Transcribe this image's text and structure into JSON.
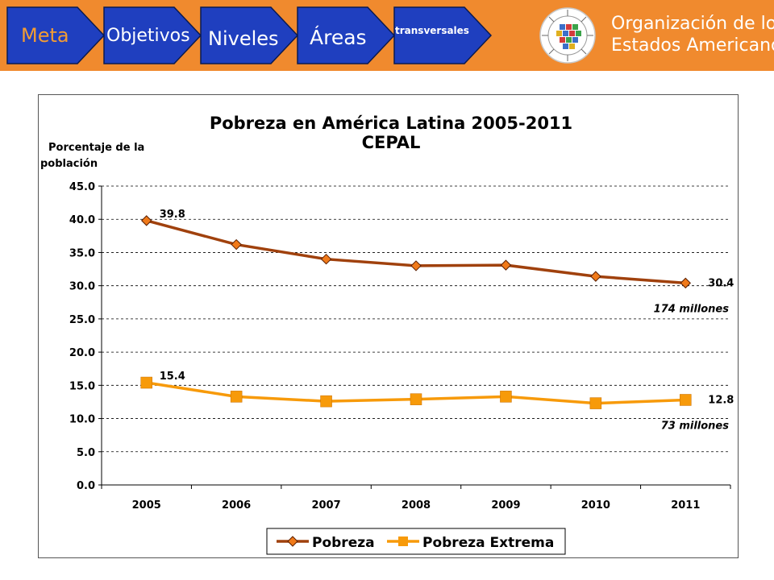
{
  "header": {
    "nav": [
      {
        "label": "Meta"
      },
      {
        "label": "Objetivos"
      },
      {
        "label": "Niveles"
      },
      {
        "label": "Áreas"
      },
      {
        "label": "transversales"
      }
    ],
    "logo": {
      "line1": "Organización de los",
      "line2": "Estados Americanos",
      "seal_text": "ORGANIZACION DE LOS ESTADOS AMERICANOS"
    }
  },
  "colors": {
    "header_bg": "#f08a2e",
    "nav_fill": "#1f3fbf",
    "nav_text_orange": "#f39c33",
    "nav_text_white": "#ffffff",
    "series_pobreza": "#a0410d",
    "series_extrema": "#f79a0a",
    "marker_pobreza": "#f07a1a"
  },
  "chart_data": {
    "type": "line",
    "title": "Pobreza en América Latina 2005-2011",
    "subtitle": "CEPAL",
    "ylabel_line1": "Porcentaje de la",
    "ylabel_line2": "población",
    "xlabel": "",
    "ylim": [
      0,
      45
    ],
    "ytick_step": 5,
    "y_ticks": [
      "45.0",
      "40.0",
      "35.0",
      "30.0",
      "25.0",
      "20.0",
      "15.0",
      "10.0",
      "5.0",
      "0.0"
    ],
    "categories": [
      "2005",
      "2006",
      "2007",
      "2008",
      "2009",
      "2010",
      "2011"
    ],
    "series": [
      {
        "name": "Pobreza",
        "values": [
          39.8,
          36.2,
          34.0,
          33.0,
          33.1,
          31.4,
          30.4
        ],
        "marker": "diamond"
      },
      {
        "name": "Pobreza Extrema",
        "values": [
          15.4,
          13.3,
          12.6,
          12.9,
          13.3,
          12.3,
          12.8
        ],
        "marker": "square"
      }
    ],
    "data_labels": [
      {
        "series": 0,
        "index": 0,
        "text": "39.8"
      },
      {
        "series": 0,
        "index": 6,
        "text": "30.4"
      },
      {
        "series": 1,
        "index": 0,
        "text": "15.4"
      },
      {
        "series": 1,
        "index": 6,
        "text": "12.8"
      }
    ],
    "annotations": [
      {
        "series": 0,
        "text": "174 millones"
      },
      {
        "series": 1,
        "text": "73 millones"
      }
    ],
    "legend": [
      "Pobreza",
      "Pobreza Extrema"
    ],
    "legend_position": "bottom",
    "grid": true
  }
}
